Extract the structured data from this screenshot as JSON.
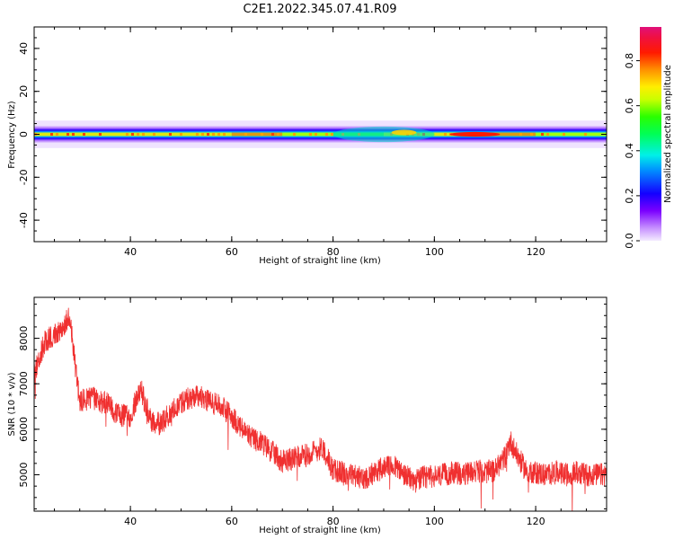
{
  "title": "C2E1.2022.345.07.41.R09",
  "chart_data": [
    {
      "type": "heatmap",
      "xlabel": "Height of straight line (km)",
      "ylabel": "Frequency (Hz)",
      "xlim": [
        21,
        134
      ],
      "ylim": [
        -50,
        50
      ],
      "xticks": [
        40,
        60,
        80,
        100,
        120
      ],
      "yticks": [
        -40,
        -20,
        0,
        20,
        40
      ],
      "band_center_hz": 0,
      "band_halfwidth_hz": 4,
      "peak_ridge": [
        {
          "x": 21,
          "amp": 0.7
        },
        {
          "x": 40,
          "amp": 0.75
        },
        {
          "x": 60,
          "amp": 0.85
        },
        {
          "x": 70,
          "amp": 0.8
        },
        {
          "x": 80,
          "amp": 0.55
        },
        {
          "x": 90,
          "amp": 0.6
        },
        {
          "x": 95,
          "amp": 0.7
        },
        {
          "x": 100,
          "amp": 0.55
        },
        {
          "x": 105,
          "amp": 0.95
        },
        {
          "x": 110,
          "amp": 0.95
        },
        {
          "x": 120,
          "amp": 0.7
        },
        {
          "x": 134,
          "amp": 0.6
        }
      ],
      "colorbar": {
        "label": "Normalized spectral amplitude",
        "range": [
          0,
          0.95
        ],
        "ticks": [
          0.0,
          0.2,
          0.4,
          0.6,
          0.8
        ]
      }
    },
    {
      "type": "line",
      "xlabel": "Height of straight line (km)",
      "ylabel": "SNR (10 * v/v)",
      "xlim": [
        21,
        134
      ],
      "ylim": [
        4200,
        8900
      ],
      "xticks": [
        40,
        60,
        80,
        100,
        120
      ],
      "yticks": [
        5000,
        6000,
        7000,
        8000
      ],
      "color": "#f03030",
      "series": [
        {
          "x": [
            21,
            23,
            25,
            27,
            28,
            29,
            30,
            32,
            35,
            38,
            40,
            42,
            44,
            46,
            48,
            50,
            52,
            54,
            56,
            58,
            60,
            62,
            64,
            66,
            68,
            70,
            72,
            74,
            76,
            78,
            80,
            82,
            84,
            86,
            88,
            90,
            92,
            94,
            96,
            98,
            100,
            102,
            104,
            106,
            108,
            110,
            112,
            114,
            115,
            116,
            118,
            120,
            122,
            124,
            126,
            128,
            130,
            132,
            134
          ],
          "y": [
            7200,
            7900,
            8100,
            8300,
            8500,
            7500,
            6600,
            6700,
            6600,
            6300,
            6300,
            6900,
            6200,
            6100,
            6400,
            6600,
            6700,
            6700,
            6600,
            6500,
            6300,
            6000,
            5800,
            5700,
            5500,
            5300,
            5350,
            5400,
            5500,
            5600,
            5100,
            5050,
            5000,
            4900,
            5050,
            5150,
            5200,
            5000,
            4850,
            4950,
            4950,
            5000,
            5050,
            5000,
            5100,
            5050,
            5100,
            5400,
            5750,
            5500,
            5100,
            5050,
            5000,
            5050,
            5000,
            5050,
            5000,
            5000,
            5000
          ]
        }
      ]
    }
  ]
}
